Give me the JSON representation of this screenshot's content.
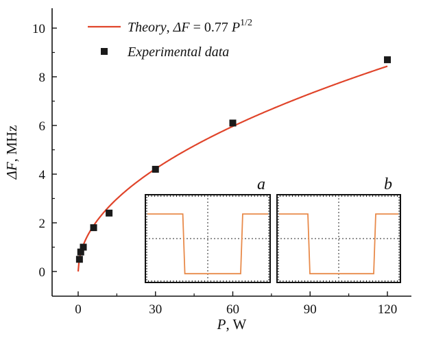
{
  "chart_data": {
    "type": "scatter",
    "xlabel": {
      "italic": "P",
      "rest": ", W"
    },
    "ylabel": {
      "italic": "ΔF",
      "rest": ", MHz"
    },
    "x_ticks": [
      0,
      30,
      60,
      90,
      120
    ],
    "y_ticks": [
      0,
      2,
      4,
      6,
      8,
      10
    ],
    "xlim": [
      -10,
      140
    ],
    "ylim": [
      -1,
      11
    ],
    "grid": false,
    "legend_position": "top-left",
    "series": [
      {
        "name": "Theory, ΔF = 0.77 P^1/2",
        "kind": "line",
        "color": "#e0442a",
        "coefficient": 0.77,
        "exponent": 0.5,
        "x_range": [
          0,
          120
        ]
      },
      {
        "name": "Experimental data",
        "kind": "markers",
        "marker": "square",
        "color": "#1a1a1a",
        "x": [
          0.5,
          1,
          2,
          6,
          12,
          30,
          60,
          120
        ],
        "y": [
          0.5,
          0.8,
          1.0,
          1.8,
          2.4,
          4.2,
          6.1,
          8.7
        ]
      }
    ],
    "legend": {
      "theory": {
        "italic_word": "Theory",
        "eq_lhs": "ΔF",
        "eq_mid": " = 0.77 ",
        "eq_var": "P",
        "exponent": "1/2"
      },
      "experimental": "Experimental data"
    },
    "insets": [
      {
        "letter": "a",
        "trace_color": "#e88a4a",
        "high_level": 0.22,
        "low_level": 0.9,
        "drop_at": 0.3,
        "rise_at": 0.78
      },
      {
        "letter": "b",
        "trace_color": "#e88a4a",
        "high_level": 0.22,
        "low_level": 0.9,
        "drop_at": 0.25,
        "rise_at": 0.8
      }
    ]
  }
}
